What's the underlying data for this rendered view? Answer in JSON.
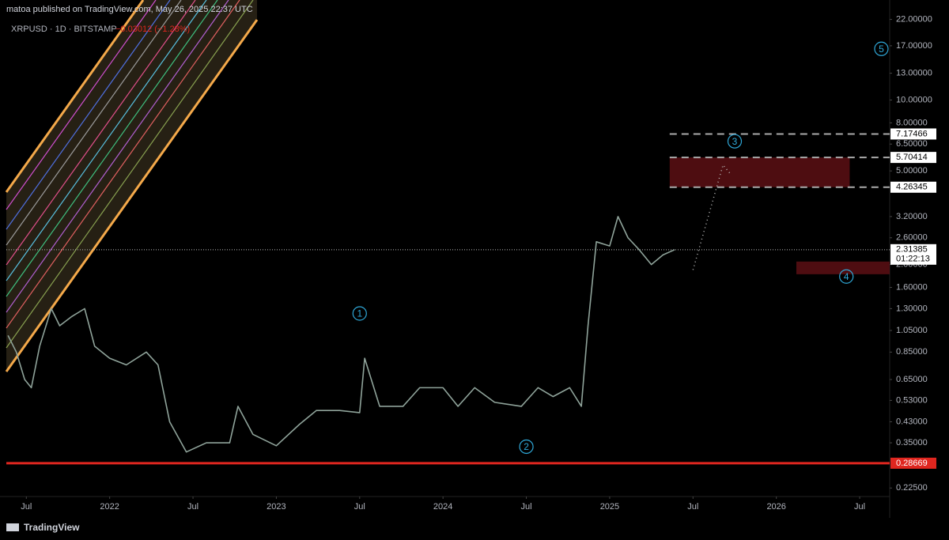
{
  "header": {
    "publisher": "matoa published on TradingView.com, May 26, 2025 22:37 UTC",
    "brand": "TradingView"
  },
  "chart_data": {
    "type": "line",
    "symbol": "XRPUSD · 1D · BITSTAMP",
    "change": "−0.03012 (−1.28%)",
    "log_scale": true,
    "grid": false,
    "xlim": [
      2021.38,
      2026.68
    ],
    "ylim": [
      0.207,
      26.6
    ],
    "xticks": [
      {
        "value": 2021.5,
        "label": "Jul"
      },
      {
        "value": 2022,
        "label": "2022"
      },
      {
        "value": 2022.5,
        "label": "Jul"
      },
      {
        "value": 2023,
        "label": "2023"
      },
      {
        "value": 2023.5,
        "label": "Jul"
      },
      {
        "value": 2024,
        "label": "2024"
      },
      {
        "value": 2024.5,
        "label": "Jul"
      },
      {
        "value": 2025,
        "label": "2025"
      },
      {
        "value": 2025.5,
        "label": "Jul"
      },
      {
        "value": 2026,
        "label": "2026"
      },
      {
        "value": 2026.5,
        "label": "Jul"
      }
    ],
    "yticks": [
      {
        "value": 22,
        "label": "22.00000"
      },
      {
        "value": 17,
        "label": "17.00000"
      },
      {
        "value": 13,
        "label": "13.00000"
      },
      {
        "value": 10,
        "label": "10.00000"
      },
      {
        "value": 8,
        "label": "8.00000"
      },
      {
        "value": 6.5,
        "label": "6.50000"
      },
      {
        "value": 5,
        "label": "5.00000"
      },
      {
        "value": 3.2,
        "label": "3.20000"
      },
      {
        "value": 2.6,
        "label": "2.60000"
      },
      {
        "value": 2,
        "label": "2.00000"
      },
      {
        "value": 1.6,
        "label": "1.60000"
      },
      {
        "value": 1.3,
        "label": "1.30000"
      },
      {
        "value": 1.05,
        "label": "1.05000"
      },
      {
        "value": 0.85,
        "label": "0.85000"
      },
      {
        "value": 0.65,
        "label": "0.65000"
      },
      {
        "value": 0.53,
        "label": "0.53000"
      },
      {
        "value": 0.43,
        "label": "0.43000"
      },
      {
        "value": 0.35,
        "label": "0.35000"
      },
      {
        "value": 0.225,
        "label": "0.22500"
      }
    ],
    "x": [
      2021.39,
      2021.44,
      2021.49,
      2021.53,
      2021.58,
      2021.65,
      2021.7,
      2021.77,
      2021.85,
      2021.91,
      2022.0,
      2022.1,
      2022.22,
      2022.29,
      2022.36,
      2022.46,
      2022.58,
      2022.72,
      2022.77,
      2022.86,
      2023.0,
      2023.14,
      2023.24,
      2023.38,
      2023.5,
      2023.53,
      2023.62,
      2023.76,
      2023.86,
      2024.0,
      2024.09,
      2024.19,
      2024.31,
      2024.47,
      2024.57,
      2024.66,
      2024.76,
      2024.83,
      2024.87,
      2024.92,
      2025.0,
      2025.05,
      2025.11,
      2025.18,
      2025.25,
      2025.32,
      2025.39
    ],
    "series": [
      {
        "name": "XRPUSD",
        "color": "#8fa39a",
        "values": [
          1.0,
          0.85,
          0.65,
          0.6,
          0.9,
          1.3,
          1.1,
          1.2,
          1.3,
          0.9,
          0.8,
          0.75,
          0.85,
          0.75,
          0.43,
          0.32,
          0.35,
          0.35,
          0.5,
          0.38,
          0.34,
          0.42,
          0.48,
          0.48,
          0.47,
          0.8,
          0.5,
          0.5,
          0.6,
          0.6,
          0.5,
          0.6,
          0.52,
          0.5,
          0.6,
          0.55,
          0.6,
          0.5,
          1.1,
          2.5,
          2.4,
          3.2,
          2.6,
          2.3,
          2.0,
          2.2,
          2.31385
        ]
      }
    ],
    "price_levels": [
      7.17466,
      5.70414,
      4.26345
    ],
    "last_price": 2.31385,
    "countdown": "01:22:13",
    "support": 0.28669,
    "support_color": "#e0261f",
    "zones": [
      {
        "from": 2025.36,
        "to": 2026.44,
        "low": 4.26345,
        "high": 5.70414,
        "color": "#5c0f14"
      },
      {
        "from": 2026.12,
        "to": 2026.68,
        "low": 1.82,
        "high": 2.06,
        "color": "#5c0f14"
      }
    ],
    "projection": {
      "x": [
        2025.5,
        2025.68,
        2025.72
      ],
      "values": [
        1.9,
        5.3,
        4.9
      ]
    },
    "annotations": [
      {
        "label": "1",
        "x": 2023.5,
        "y": 1.24
      },
      {
        "label": "2",
        "x": 2024.5,
        "y": 0.337
      },
      {
        "label": "3",
        "x": 2025.75,
        "y": 6.68
      },
      {
        "label": "4",
        "x": 2026.42,
        "y": 1.78
      },
      {
        "label": "5",
        "x": 2026.63,
        "y": 16.5
      }
    ]
  }
}
